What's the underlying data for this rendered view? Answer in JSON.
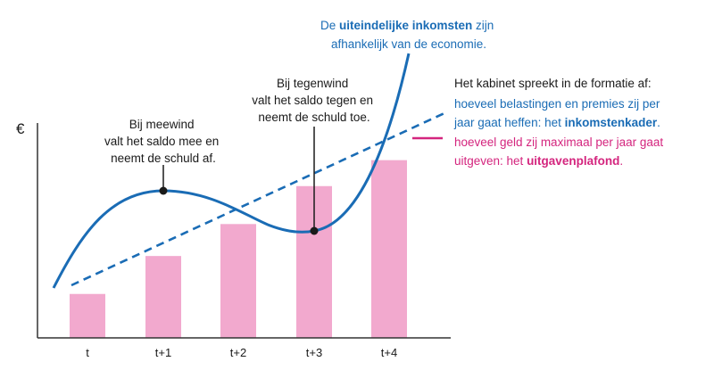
{
  "axis": {
    "y_label": "€",
    "categories": [
      "t",
      "t+1",
      "t+2",
      "t+3",
      "t+4"
    ]
  },
  "bars": {
    "name": "uitgavenplafond",
    "values": [
      0.22,
      0.41,
      0.57,
      0.76,
      0.89
    ]
  },
  "annotations": {
    "meewind": [
      "Bij meewind",
      "valt het saldo mee en",
      "neemt de schuld af."
    ],
    "tegenwind": [
      "Bij tegenwind",
      "valt het saldo tegen en",
      "neemt de schuld toe."
    ],
    "inkomsten": {
      "line1_pre": "De ",
      "line1_bold": "uiteindelijke inkomsten",
      "line1_post": " zijn",
      "line2": "afhankelijk van de economie."
    }
  },
  "legend": {
    "header": "Het kabinet spreekt in de formatie af:",
    "inkomstenkader": {
      "line1": "hoeveel belastingen en premies zij per",
      "line2_pre": "jaar gaat heffen: het ",
      "line2_bold": "inkomstenkader",
      "line2_post": "."
    },
    "uitgavenplafond": {
      "line1": "hoeveel geld zij maximaal per jaar gaat",
      "line2_pre": "uitgeven: het ",
      "line2_bold": "uitgavenplafond",
      "line2_post": "."
    }
  },
  "colors": {
    "blue": "#1a6cb5",
    "magenta": "#d4257e",
    "bar": "#f2a9ce",
    "text": "#1a1a1a",
    "axis": "#333333"
  }
}
